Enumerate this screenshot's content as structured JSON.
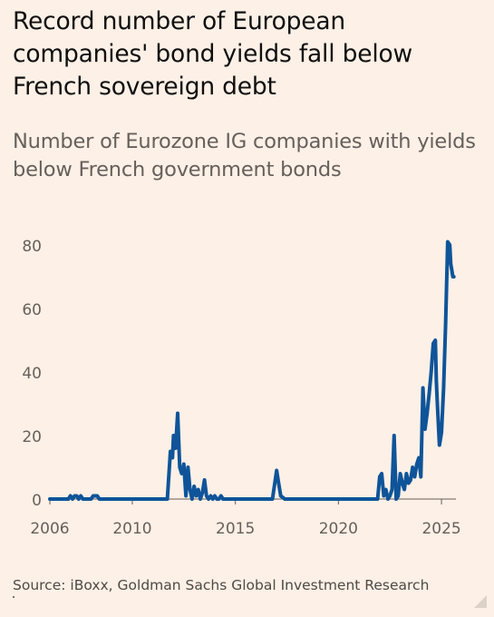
{
  "title": "Record number of European companies' bond yields fall below French sovereign debt",
  "subtitle": "Number of Eurozone IG companies with yields below French government bonds",
  "source": "Source: iBoxx, Goldman Sachs Global Investment Research",
  "chart_data": {
    "type": "line",
    "title": "Record number of European companies' bond yields fall below French sovereign debt",
    "subtitle": "Number of Eurozone IG companies with yields below French government bonds",
    "xlabel": "",
    "ylabel": "",
    "xlim": [
      2006,
      2025.7
    ],
    "ylim": [
      0,
      80
    ],
    "x_ticks": [
      2006,
      2010,
      2015,
      2020,
      2025
    ],
    "y_ticks": [
      0,
      20,
      40,
      60,
      80
    ],
    "grid": false,
    "line_color": "#0f5499",
    "series": [
      {
        "x": [
          2006.0,
          2006.9,
          2007.0,
          2007.1,
          2007.2,
          2007.3,
          2007.4,
          2007.5,
          2007.6,
          2007.7,
          2007.8,
          2008.0,
          2008.1,
          2008.3,
          2008.4,
          2008.5,
          2011.7,
          2011.85,
          2011.95,
          2012.0,
          2012.1,
          2012.2,
          2012.3,
          2012.4,
          2012.5,
          2012.6,
          2012.7,
          2012.8,
          2012.9,
          2013.0,
          2013.1,
          2013.2,
          2013.3,
          2013.4,
          2013.5,
          2013.6,
          2013.7,
          2013.8,
          2013.9,
          2014.0,
          2014.1,
          2014.2,
          2014.3,
          2014.4,
          2016.8,
          2017.0,
          2017.1,
          2017.2,
          2017.4,
          2021.9,
          2022.0,
          2022.1,
          2022.2,
          2022.3,
          2022.4,
          2022.5,
          2022.6,
          2022.7,
          2022.8,
          2022.9,
          2023.0,
          2023.1,
          2023.2,
          2023.3,
          2023.4,
          2023.5,
          2023.6,
          2023.7,
          2023.8,
          2023.9,
          2024.0,
          2024.1,
          2024.2,
          2024.3,
          2024.4,
          2024.5,
          2024.6,
          2024.7,
          2024.75,
          2024.8,
          2024.9,
          2025.0,
          2025.1,
          2025.2,
          2025.3,
          2025.4,
          2025.45,
          2025.5,
          2025.55,
          2025.6
        ],
        "values": [
          0,
          0,
          1,
          0,
          1,
          1,
          0,
          1,
          0,
          0,
          0,
          0,
          1,
          1,
          0,
          0,
          0,
          15,
          13,
          20,
          16,
          27,
          10,
          8,
          11,
          1,
          10,
          3,
          0,
          4,
          1,
          3,
          0,
          2,
          6,
          1,
          0,
          1,
          0,
          1,
          0,
          0,
          1,
          0,
          0,
          9,
          5,
          1,
          0,
          0,
          7,
          8,
          1,
          3,
          0,
          1,
          3,
          20,
          0,
          1,
          8,
          5,
          3,
          8,
          5,
          6,
          10,
          7,
          11,
          13,
          7,
          35,
          22,
          27,
          33,
          40,
          49,
          50,
          37,
          30,
          17,
          21,
          35,
          55,
          81,
          80,
          74,
          72,
          70,
          70
        ]
      }
    ]
  }
}
